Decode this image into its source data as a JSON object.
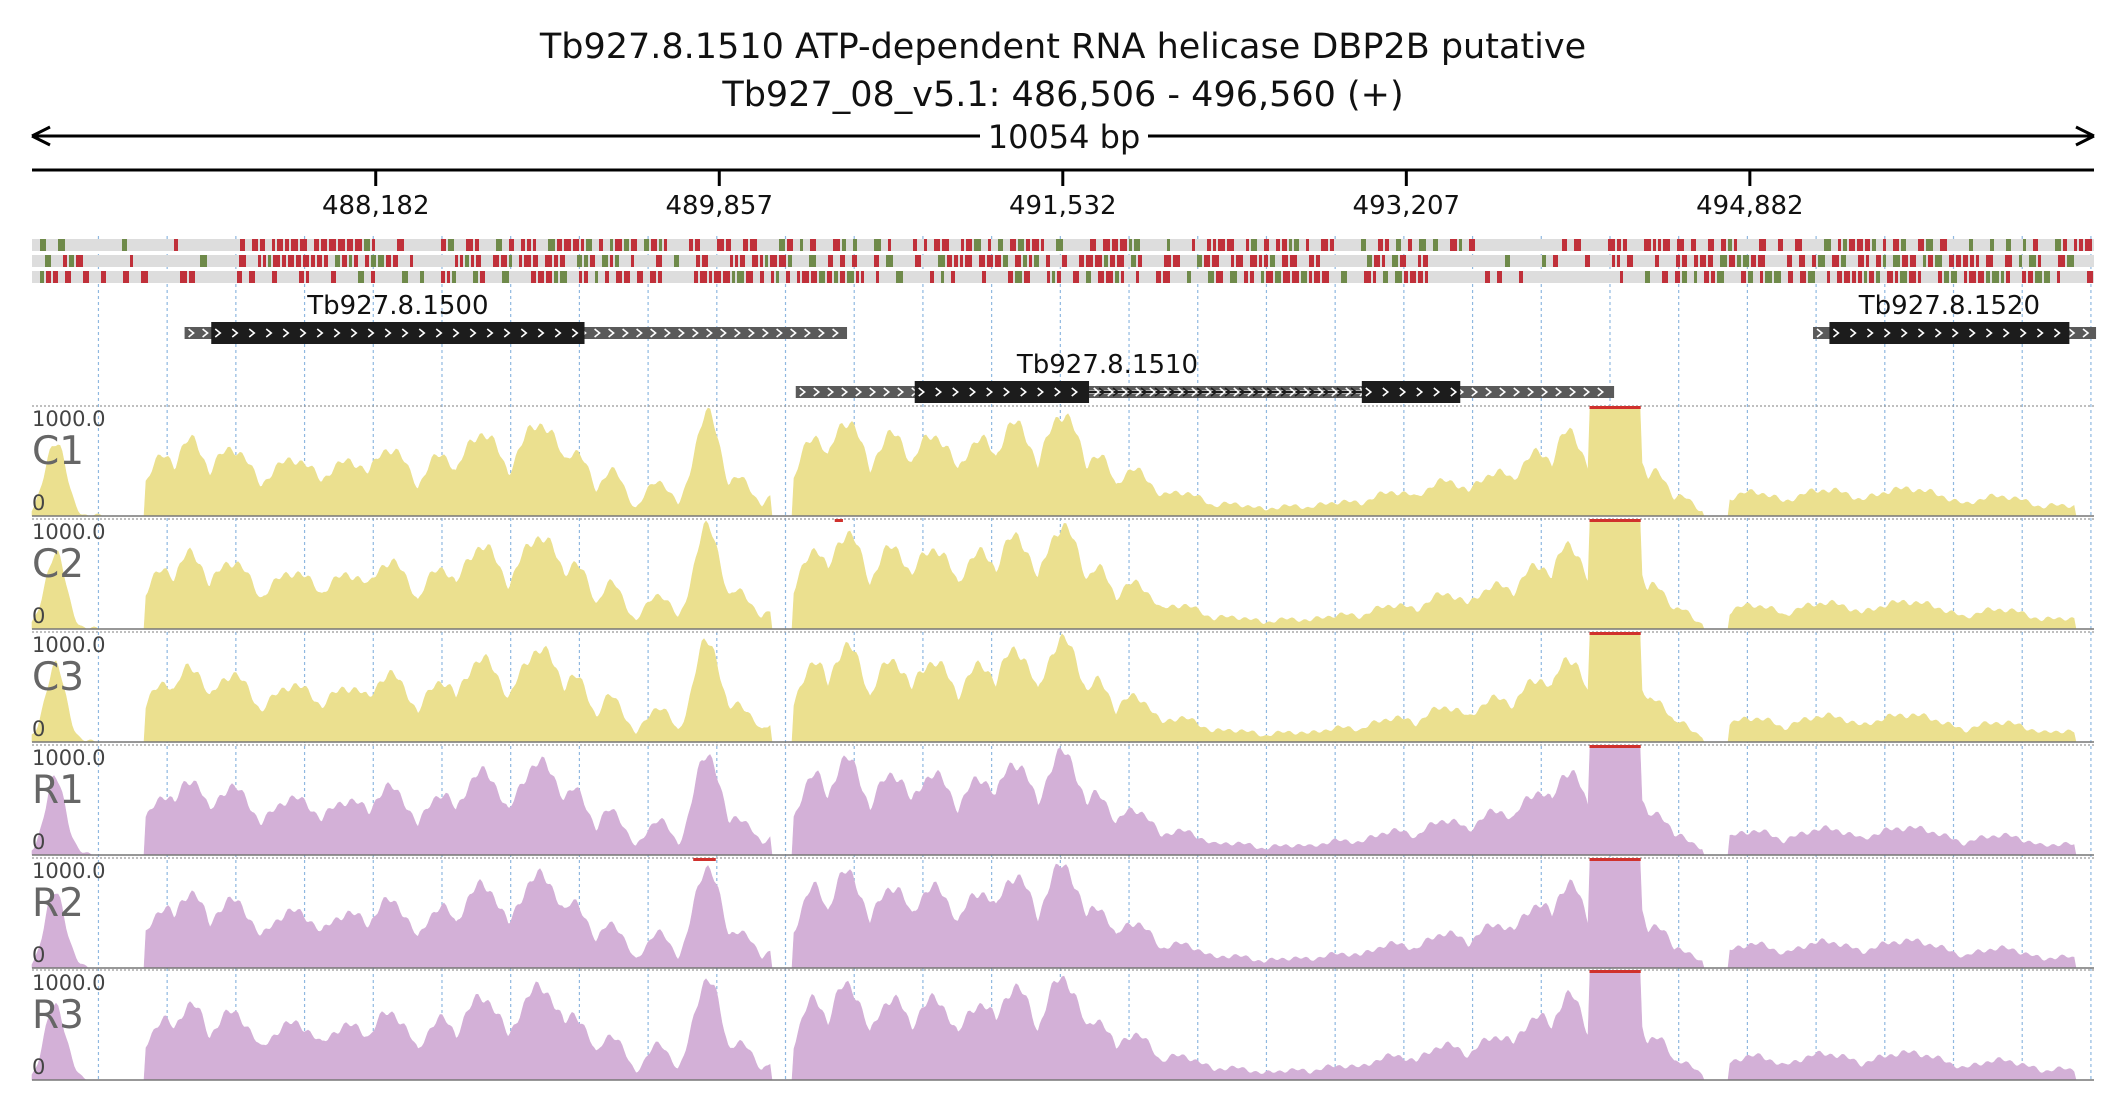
{
  "title": {
    "line1": "Tb927.8.1510  ATP-dependent RNA helicase DBP2B  putative",
    "line2": "Tb927_08_v5.1: 486,506 - 496,560 (+)"
  },
  "region": {
    "start": 486506,
    "end": 496560,
    "span_label": "10054 bp"
  },
  "ruler_ticks": [
    {
      "pos": 488182,
      "label": "488,182"
    },
    {
      "pos": 489857,
      "label": "489,857"
    },
    {
      "pos": 491532,
      "label": "491,532"
    },
    {
      "pos": 493207,
      "label": "493,207"
    },
    {
      "pos": 494882,
      "label": "494,882"
    }
  ],
  "genes": [
    {
      "name": "Tb927.8.1500",
      "row": 0,
      "utr_start": 487250,
      "cds_start": 487380,
      "cds_end": 489200,
      "utr_end": 490480
    },
    {
      "name": "Tb927.8.1510",
      "row": 1,
      "utr_start": 490230,
      "cds_start": 490810,
      "cds_end": 491660,
      "exon2_start": 492990,
      "exon2_end": 493470,
      "utr_end": 494220
    },
    {
      "name": "Tb927.8.1520",
      "row": 0,
      "utr_start": 495190,
      "cds_start": 495270,
      "cds_end": 496440,
      "utr_end": 496570
    }
  ],
  "tracks": [
    {
      "label": "C1",
      "max_label": "1000.0",
      "min_label": "0",
      "color": "#ebe08f",
      "clip_color": "#d0312d",
      "clip_ranges": [
        [
          494100,
          494350
        ]
      ]
    },
    {
      "label": "C2",
      "max_label": "1000.0",
      "min_label": "0",
      "color": "#ebe08f",
      "clip_color": "#d0312d",
      "clip_ranges": [
        [
          490420,
          490460
        ],
        [
          494100,
          494350
        ]
      ]
    },
    {
      "label": "C3",
      "max_label": "1000.0",
      "min_label": "0",
      "color": "#ebe08f",
      "clip_color": "#d0312d",
      "clip_ranges": [
        [
          494100,
          494350
        ]
      ]
    },
    {
      "label": "R1",
      "max_label": "1000.0",
      "min_label": "0",
      "color": "#d3b0d7",
      "clip_color": "#d0312d",
      "clip_ranges": [
        [
          494100,
          494350
        ]
      ]
    },
    {
      "label": "R2",
      "max_label": "1000.0",
      "min_label": "0",
      "color": "#d3b0d7",
      "clip_color": "#d0312d",
      "clip_ranges": [
        [
          489730,
          489840
        ],
        [
          494100,
          494350
        ]
      ]
    },
    {
      "label": "R3",
      "max_label": "1000.0",
      "min_label": "0",
      "color": "#d3b0d7",
      "clip_color": "#d0312d",
      "clip_ranges": [
        [
          494100,
          494350
        ]
      ]
    }
  ],
  "colors": {
    "grid": "#8fb8e0",
    "variant_red": "#c0303a",
    "variant_green": "#6f8a4a",
    "variant_bg": "#dddddd",
    "gene_cds": "#1c1c1c",
    "gene_utr": "#5a5a5a"
  }
}
